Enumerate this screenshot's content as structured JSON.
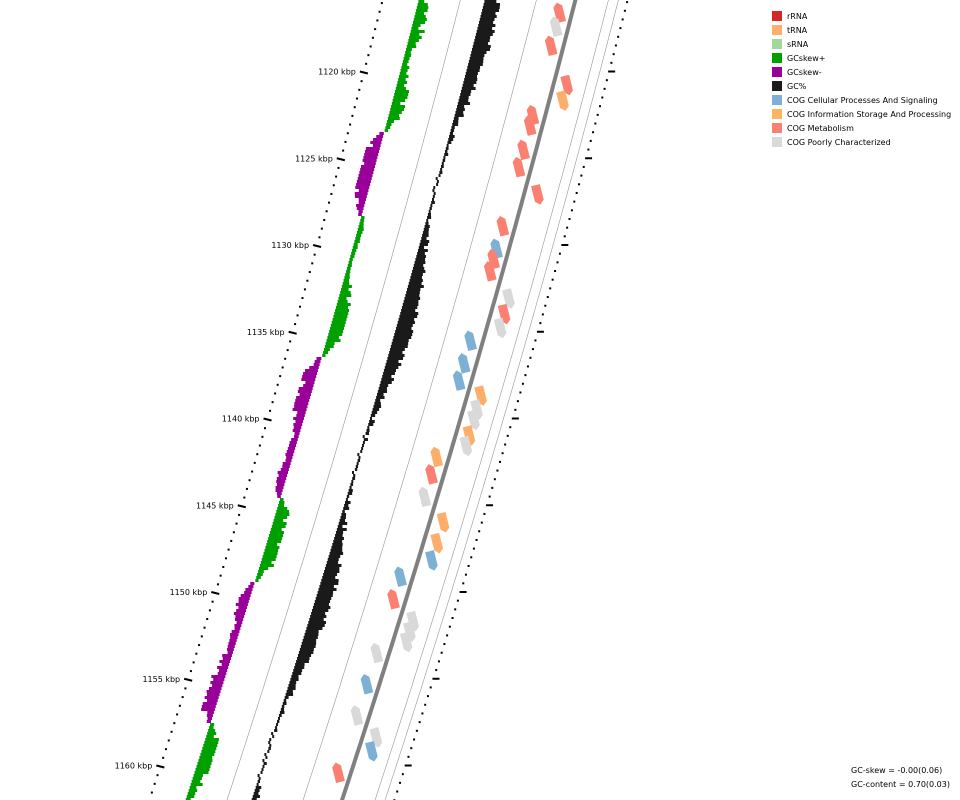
{
  "legend": [
    {
      "label": "rRNA",
      "color": "#d62728"
    },
    {
      "label": "tRNA",
      "color": "#fdae6b"
    },
    {
      "label": "sRNA",
      "color": "#a1d99b"
    },
    {
      "label": "GCskew+",
      "color": "#00a000"
    },
    {
      "label": "GCskew-",
      "color": "#990099"
    },
    {
      "label": "GC%",
      "color": "#1a1a1a"
    },
    {
      "label": "COG Cellular Processes And Signaling",
      "color": "#7eb0d5"
    },
    {
      "label": "COG Information Storage And Processing",
      "color": "#fdb462"
    },
    {
      "label": "COG Metabolism",
      "color": "#fa8072"
    },
    {
      "label": "COG Poorly Characterized",
      "color": "#d9d9d9"
    }
  ],
  "ticks": [
    {
      "kbp": 1120,
      "label": "1120 kbp"
    },
    {
      "kbp": 1125,
      "label": "1125 kbp"
    },
    {
      "kbp": 1130,
      "label": "1130 kbp"
    },
    {
      "kbp": 1135,
      "label": "1135 kbp"
    },
    {
      "kbp": 1140,
      "label": "1140 kbp"
    },
    {
      "kbp": 1145,
      "label": "1145 kbp"
    },
    {
      "kbp": 1150,
      "label": "1150 kbp"
    },
    {
      "kbp": 1155,
      "label": "1155 kbp"
    },
    {
      "kbp": 1160,
      "label": "1160 kbp"
    }
  ],
  "stats": {
    "gc_skew": "GC-skew = -0.00(0.06)",
    "gc_content": "GC-content = 0.70(0.03)"
  },
  "colors": {
    "backbone": "#808080",
    "ring_line": "#999999",
    "scale_dot": "#000000",
    "gc_bar": "#1a1a1a",
    "gc_skew_plus": "#00a000",
    "gc_skew_minus": "#990099"
  },
  "features": [
    {
      "kbp": 1116.7,
      "strand": 1,
      "category": "COG Metabolism"
    },
    {
      "kbp": 1117.5,
      "strand": 1,
      "category": "COG Poorly Characterized"
    },
    {
      "kbp": 1118.6,
      "strand": 1,
      "category": "COG Metabolism"
    },
    {
      "kbp": 1120.7,
      "strand": -1,
      "category": "COG Metabolism"
    },
    {
      "kbp": 1121.6,
      "strand": -1,
      "category": "tRNA"
    },
    {
      "kbp": 1122.6,
      "strand": 1,
      "category": "COG Metabolism"
    },
    {
      "kbp": 1123.2,
      "strand": 1,
      "category": "COG Metabolism"
    },
    {
      "kbp": 1124.6,
      "strand": 1,
      "category": "COG Metabolism"
    },
    {
      "kbp": 1125.6,
      "strand": 1,
      "category": "COG Metabolism"
    },
    {
      "kbp": 1127.0,
      "strand": -1,
      "category": "COG Metabolism"
    },
    {
      "kbp": 1129.0,
      "strand": 1,
      "category": "COG Metabolism"
    },
    {
      "kbp": 1130.3,
      "strand": 1,
      "category": "COG Cellular Processes And Signaling"
    },
    {
      "kbp": 1130.9,
      "strand": 1,
      "category": "COG Metabolism"
    },
    {
      "kbp": 1131.6,
      "strand": 1,
      "category": "COG Metabolism"
    },
    {
      "kbp": 1133.0,
      "strand": -1,
      "category": "COG Poorly Characterized"
    },
    {
      "kbp": 1133.9,
      "strand": -1,
      "category": "COG Metabolism"
    },
    {
      "kbp": 1134.7,
      "strand": -1,
      "category": "COG Poorly Characterized"
    },
    {
      "kbp": 1135.6,
      "strand": 1,
      "category": "COG Cellular Processes And Signaling"
    },
    {
      "kbp": 1136.9,
      "strand": 1,
      "category": "COG Cellular Processes And Signaling"
    },
    {
      "kbp": 1137.9,
      "strand": 1,
      "category": "COG Cellular Processes And Signaling"
    },
    {
      "kbp": 1138.6,
      "strand": -1,
      "category": "tRNA"
    },
    {
      "kbp": 1139.4,
      "strand": -1,
      "category": "COG Poorly Characterized"
    },
    {
      "kbp": 1140.0,
      "strand": -1,
      "category": "COG Poorly Characterized"
    },
    {
      "kbp": 1140.9,
      "strand": -1,
      "category": "tRNA"
    },
    {
      "kbp": 1141.5,
      "strand": -1,
      "category": "COG Poorly Characterized"
    },
    {
      "kbp": 1142.3,
      "strand": 1,
      "category": "tRNA"
    },
    {
      "kbp": 1143.3,
      "strand": 1,
      "category": "COG Metabolism"
    },
    {
      "kbp": 1144.6,
      "strand": 1,
      "category": "COG Poorly Characterized"
    },
    {
      "kbp": 1145.9,
      "strand": -1,
      "category": "tRNA"
    },
    {
      "kbp": 1147.1,
      "strand": -1,
      "category": "tRNA"
    },
    {
      "kbp": 1148.1,
      "strand": -1,
      "category": "COG Cellular Processes And Signaling"
    },
    {
      "kbp": 1149.2,
      "strand": 1,
      "category": "COG Cellular Processes And Signaling"
    },
    {
      "kbp": 1150.5,
      "strand": 1,
      "category": "COG Metabolism"
    },
    {
      "kbp": 1151.6,
      "strand": -1,
      "category": "COG Poorly Characterized"
    },
    {
      "kbp": 1152.2,
      "strand": -1,
      "category": "COG Poorly Characterized"
    },
    {
      "kbp": 1152.8,
      "strand": -1,
      "category": "COG Poorly Characterized"
    },
    {
      "kbp": 1153.6,
      "strand": 1,
      "category": "COG Poorly Characterized"
    },
    {
      "kbp": 1155.4,
      "strand": 1,
      "category": "COG Cellular Processes And Signaling"
    },
    {
      "kbp": 1157.2,
      "strand": 1,
      "category": "COG Poorly Characterized"
    },
    {
      "kbp": 1158.3,
      "strand": -1,
      "category": "COG Poorly Characterized"
    },
    {
      "kbp": 1159.1,
      "strand": -1,
      "category": "COG Cellular Processes And Signaling"
    },
    {
      "kbp": 1160.5,
      "strand": 1,
      "category": "COG Metabolism"
    }
  ]
}
